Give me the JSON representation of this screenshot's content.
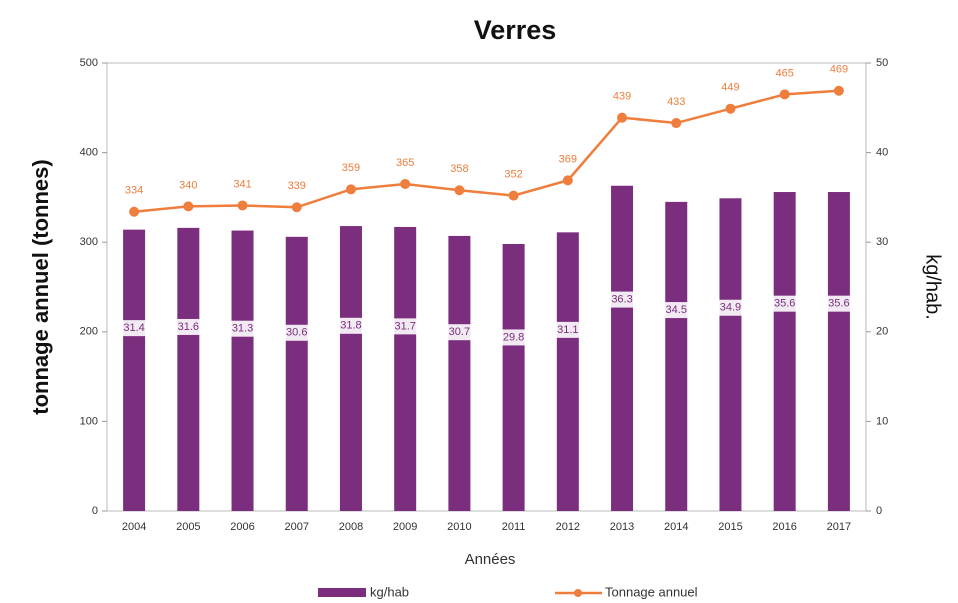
{
  "chart_data": {
    "type": "bar-line",
    "title": "Verres",
    "x_label": "Années",
    "y_label": "tonnage annuel (tonnes)",
    "y2_label": "kg/hab.",
    "categories": [
      "2004",
      "2005",
      "2006",
      "2007",
      "2008",
      "2009",
      "2010",
      "2011",
      "2012",
      "2013",
      "2014",
      "2015",
      "2016",
      "2017"
    ],
    "series": [
      {
        "name": "kg/hab",
        "color": "#7b2d7e",
        "type": "bar",
        "axis": "y2",
        "values": [
          31.4,
          31.6,
          31.3,
          30.6,
          31.8,
          31.7,
          30.7,
          29.8,
          31.1,
          36.3,
          34.5,
          34.9,
          35.6,
          35.6
        ]
      },
      {
        "name": "Tonnage annuel",
        "color": "#ef7d3c",
        "type": "line",
        "values": [
          334,
          340,
          341,
          339,
          359,
          365,
          358,
          352,
          369,
          439,
          433,
          449,
          465,
          469
        ]
      }
    ],
    "ylim": [
      0,
      500
    ],
    "yticks": [
      0,
      100,
      200,
      300,
      400,
      500
    ],
    "y2lim": [
      0,
      50
    ],
    "y2ticks": [
      0,
      10,
      20,
      30,
      40,
      50
    ],
    "grid": false,
    "legend": "bottom"
  }
}
